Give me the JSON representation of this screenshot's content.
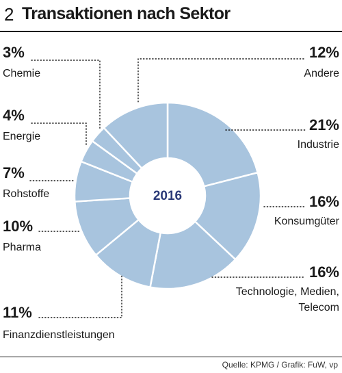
{
  "header": {
    "number": "2",
    "title": "Transaktionen nach Sektor"
  },
  "source": "Quelle: KPMG / Grafik: FuW, vp",
  "chart_data": {
    "type": "pie",
    "center_label": "2016",
    "slice_color": "#a8c4de",
    "slice_border": "#ffffff",
    "text_color_center": "#2b3a78",
    "unit": "%",
    "slices": [
      {
        "label": "Industrie",
        "value": 21,
        "pct_label": "21%"
      },
      {
        "label": "Konsumgüter",
        "value": 16,
        "pct_label": "16%"
      },
      {
        "label": "Technologie, Medien, Telecom",
        "value": 16,
        "pct_label": "16%",
        "label_lines": [
          "Technologie, Medien,",
          "Telecom"
        ]
      },
      {
        "label": "Finanzdienstleistungen",
        "value": 11,
        "pct_label": "11%"
      },
      {
        "label": "Pharma",
        "value": 10,
        "pct_label": "10%"
      },
      {
        "label": "Rohstoffe",
        "value": 7,
        "pct_label": "7%"
      },
      {
        "label": "Energie",
        "value": 4,
        "pct_label": "4%"
      },
      {
        "label": "Chemie",
        "value": 3,
        "pct_label": "3%"
      },
      {
        "label": "Andere",
        "value": 12,
        "pct_label": "12%"
      }
    ]
  }
}
